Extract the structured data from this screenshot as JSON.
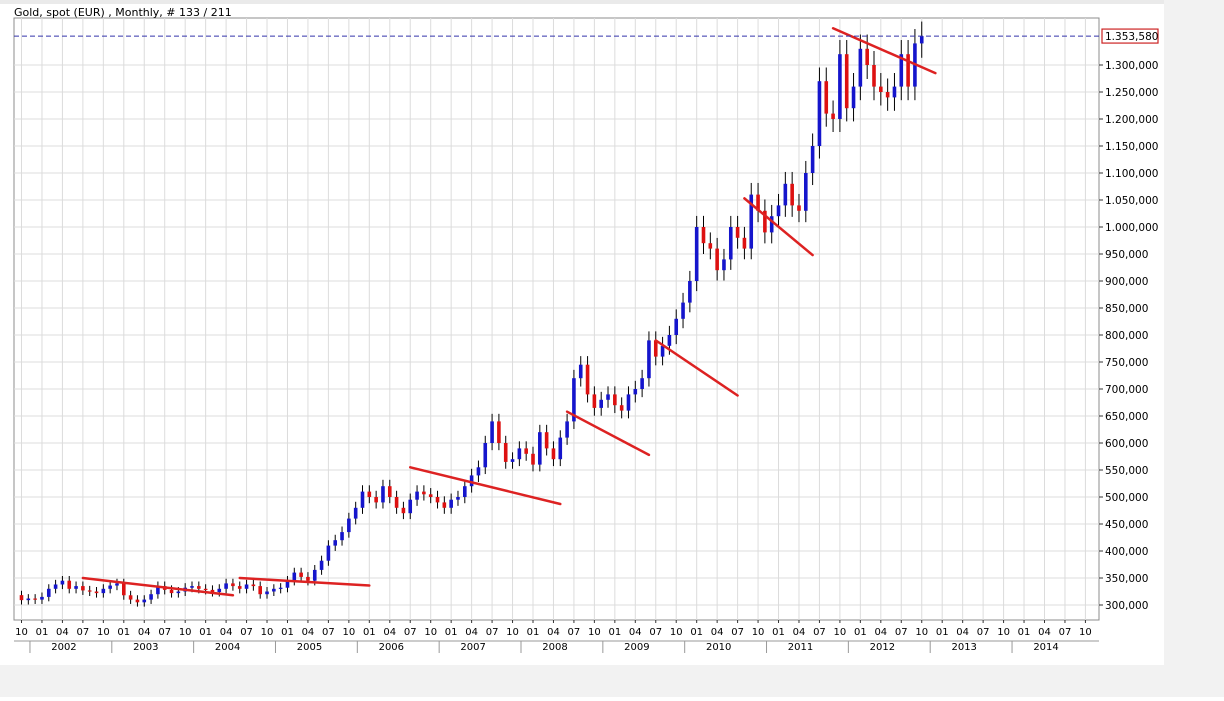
{
  "window": {
    "title": "Gold, spot (EUR) , Monthly, # 133 / 211"
  },
  "colors": {
    "up": "#1515cc",
    "down": "#dd1111",
    "trend": "#dd2222",
    "price_line": "#3333aa",
    "price_box": "#cc2222",
    "grid": "#dcdcdc",
    "frame": "#8c8c8c"
  },
  "chart_data": {
    "type": "candlestick",
    "title": "Gold, spot (EUR) , Monthly, # 133 / 211",
    "ylim": [
      280000,
      1380000
    ],
    "y_ticks": [
      300000,
      350000,
      400000,
      450000,
      500000,
      550000,
      600000,
      650000,
      700000,
      750000,
      800000,
      850000,
      900000,
      950000,
      1000000,
      1050000,
      1100000,
      1150000,
      1200000,
      1250000,
      1300000
    ],
    "y_tick_labels": [
      "300,000",
      "350,000",
      "400,000",
      "450,000",
      "500,000",
      "550,000",
      "600,000",
      "650,000",
      "700,000",
      "750,000",
      "800,000",
      "850,000",
      "900,000",
      "950,000",
      "1.000,000",
      "1.050,000",
      "1.100,000",
      "1.150,000",
      "1.200,000",
      "1.250,000",
      "1.300,000"
    ],
    "x_start": "2001-10",
    "x_month_labels": [
      "10",
      "01",
      "04",
      "07",
      "10",
      "01",
      "04",
      "07",
      "10",
      "01",
      "04",
      "07",
      "10",
      "01",
      "04",
      "07",
      "10",
      "01",
      "04",
      "07",
      "10",
      "01",
      "04",
      "07",
      "10",
      "01",
      "04",
      "07",
      "10",
      "01",
      "04",
      "07",
      "10",
      "01",
      "04",
      "07",
      "10",
      "01",
      "04",
      "07",
      "10",
      "01",
      "04",
      "07",
      "10",
      "01",
      "04",
      "07",
      "10",
      "01",
      "04",
      "07",
      "10"
    ],
    "x_year_labels": [
      "2002",
      "2003",
      "2004",
      "2005",
      "2006",
      "2007",
      "2008",
      "2009",
      "2010",
      "2011",
      "2012",
      "2013",
      "2014"
    ],
    "last_price": 1353580,
    "last_price_label": "1.353,580",
    "grid": true,
    "closes": [
      309000,
      312000,
      310000,
      315000,
      330000,
      338000,
      345000,
      330000,
      335000,
      327000,
      325000,
      322000,
      330000,
      336000,
      340000,
      318000,
      310000,
      305000,
      310000,
      320000,
      335000,
      328000,
      322000,
      325000,
      332000,
      335000,
      330000,
      328000,
      324000,
      330000,
      340000,
      335000,
      330000,
      338000,
      335000,
      320000,
      325000,
      330000,
      332000,
      345000,
      360000,
      352000,
      345000,
      365000,
      382000,
      410000,
      420000,
      435000,
      460000,
      480000,
      510000,
      500000,
      490000,
      520000,
      500000,
      480000,
      470000,
      495000,
      510000,
      505000,
      500000,
      490000,
      480000,
      495000,
      500000,
      520000,
      540000,
      555000,
      600000,
      640000,
      600000,
      565000,
      570000,
      590000,
      580000,
      560000,
      620000,
      590000,
      570000,
      610000,
      640000,
      720000,
      745000,
      690000,
      665000,
      680000,
      690000,
      670000,
      660000,
      690000,
      700000,
      720000,
      790000,
      760000,
      780000,
      800000,
      830000,
      860000,
      900000,
      1000000,
      970000,
      960000,
      920000,
      940000,
      1000000,
      980000,
      960000,
      1060000,
      1030000,
      990000,
      1020000,
      1040000,
      1080000,
      1040000,
      1030000,
      1100000,
      1150000,
      1270000,
      1210000,
      1200000,
      1320000,
      1220000,
      1260000,
      1330000,
      1300000,
      1260000,
      1250000,
      1240000,
      1260000,
      1320000,
      1260000,
      1340000,
      1353580
    ],
    "annotations": [
      {
        "type": "trendline",
        "from": [
          "2002-07",
          350000
        ],
        "to": [
          "2004-05",
          318000
        ]
      },
      {
        "type": "trendline",
        "from": [
          "2004-06",
          350000
        ],
        "to": [
          "2006-01",
          336000
        ]
      },
      {
        "type": "trendline",
        "from": [
          "2006-07",
          555000
        ],
        "to": [
          "2008-05",
          487000
        ]
      },
      {
        "type": "trendline",
        "from": [
          "2008-06",
          658000
        ],
        "to": [
          "2009-06",
          578000
        ]
      },
      {
        "type": "trendline",
        "from": [
          "2009-07",
          790000
        ],
        "to": [
          "2010-07",
          688000
        ]
      },
      {
        "type": "trendline",
        "from": [
          "2010-08",
          1053000
        ],
        "to": [
          "2011-06",
          948000
        ]
      },
      {
        "type": "trendline",
        "from": [
          "2011-09",
          1368000
        ],
        "to": [
          "2012-12",
          1285000
        ]
      }
    ]
  }
}
